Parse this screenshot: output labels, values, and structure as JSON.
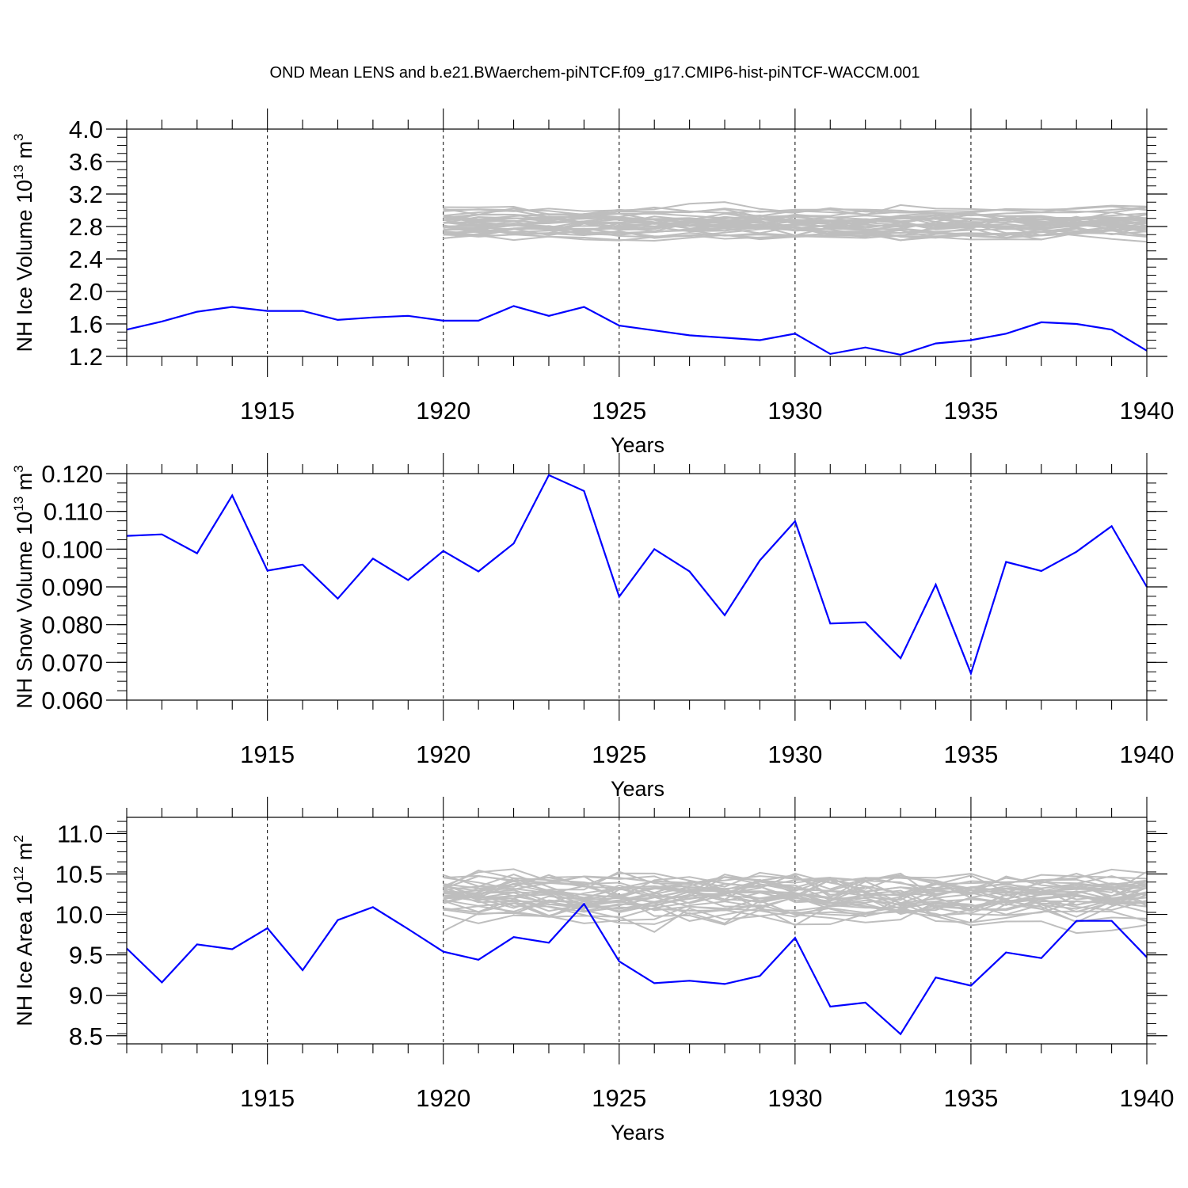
{
  "figure": {
    "title": "OND Mean LENS and b.e21.BWaerchem-piNTCF.f09_g17.CMIP6-hist-piNTCF-WACCM.001",
    "colors": {
      "lens": "#bebebe",
      "run": "#0000ff",
      "axis": "#000000",
      "grid": "#000000"
    }
  },
  "chart_data": [
    {
      "type": "line",
      "ylabel": "NH Ice Volume 10",
      "ylabel_exp": "13",
      "ylabel_unit": " m",
      "ylabel_unit_exp": "3",
      "xlabel": "Years",
      "xlim": [
        1911,
        1940
      ],
      "ylim": [
        1.2,
        4.0
      ],
      "yticks": [
        1.2,
        1.6,
        2.0,
        2.4,
        2.8,
        3.2,
        3.6,
        4.0
      ],
      "ytick_labels": [
        "1.2",
        "1.6",
        "2.0",
        "2.4",
        "2.8",
        "3.2",
        "3.6",
        "4.0"
      ],
      "xticks": [
        1915,
        1920,
        1925,
        1930,
        1935,
        1940
      ],
      "xtick_labels": [
        "1915",
        "1920",
        "1925",
        "1930",
        "1935",
        "1940"
      ],
      "grid_x": [
        1915,
        1920,
        1925,
        1930,
        1935
      ],
      "lens": {
        "name": "LENS members",
        "start": 1920,
        "n_members": 34,
        "center": 2.85,
        "spread": 0.17,
        "noise": 0.09,
        "seed": 11
      },
      "series": [
        {
          "name": "b.e21.BWaerchem-piNTCF.f09_g17.CMIP6-hist-piNTCF-WACCM.001",
          "x": [
            1911,
            1912,
            1913,
            1914,
            1915,
            1916,
            1917,
            1918,
            1919,
            1920,
            1921,
            1922,
            1923,
            1924,
            1925,
            1926,
            1927,
            1928,
            1929,
            1930,
            1931,
            1932,
            1933,
            1934,
            1935,
            1936,
            1937,
            1938,
            1939,
            1940
          ],
          "values": [
            1.53,
            1.63,
            1.75,
            1.81,
            1.76,
            1.76,
            1.65,
            1.68,
            1.7,
            1.64,
            1.64,
            1.82,
            1.7,
            1.81,
            1.58,
            1.52,
            1.46,
            1.43,
            1.4,
            1.48,
            1.23,
            1.31,
            1.22,
            1.36,
            1.4,
            1.48,
            1.62,
            1.6,
            1.53,
            1.27
          ]
        }
      ]
    },
    {
      "type": "line",
      "ylabel": "NH Snow Volume 10",
      "ylabel_exp": "13",
      "ylabel_unit": " m",
      "ylabel_unit_exp": "3",
      "xlabel": "Years",
      "xlim": [
        1911,
        1940
      ],
      "ylim": [
        0.06,
        0.12
      ],
      "yticks": [
        0.06,
        0.07,
        0.08,
        0.09,
        0.1,
        0.11,
        0.12
      ],
      "ytick_labels": [
        "0.060",
        "0.070",
        "0.080",
        "0.090",
        "0.100",
        "0.110",
        "0.120"
      ],
      "xticks": [
        1915,
        1920,
        1925,
        1930,
        1935,
        1940
      ],
      "xtick_labels": [
        "1915",
        "1920",
        "1925",
        "1930",
        "1935",
        "1940"
      ],
      "grid_x": [
        1915,
        1920,
        1925,
        1930,
        1935
      ],
      "series": [
        {
          "name": "b.e21.BWaerchem-piNTCF.f09_g17.CMIP6-hist-piNTCF-WACCM.001",
          "x": [
            1911,
            1912,
            1913,
            1914,
            1915,
            1916,
            1917,
            1918,
            1919,
            1920,
            1921,
            1922,
            1923,
            1924,
            1925,
            1926,
            1927,
            1928,
            1929,
            1930,
            1931,
            1932,
            1933,
            1934,
            1935,
            1936,
            1937,
            1938,
            1939,
            1940
          ],
          "values": [
            0.1035,
            0.1039,
            0.0989,
            0.1142,
            0.0943,
            0.0959,
            0.0869,
            0.0975,
            0.0918,
            0.0995,
            0.0941,
            0.1015,
            0.1196,
            0.1154,
            0.0874,
            0.1,
            0.0941,
            0.0825,
            0.097,
            0.1074,
            0.0803,
            0.0806,
            0.0711,
            0.0906,
            0.0671,
            0.0966,
            0.0942,
            0.0993,
            0.1061,
            0.09
          ]
        }
      ]
    },
    {
      "type": "line",
      "ylabel": "NH Ice Area 10",
      "ylabel_exp": "12",
      "ylabel_unit": " m",
      "ylabel_unit_exp": "2",
      "xlabel": "Years",
      "xlim": [
        1911,
        1940
      ],
      "ylim": [
        8.4,
        11.2
      ],
      "yticks": [
        8.5,
        9.0,
        9.5,
        10.0,
        10.5,
        11.0
      ],
      "ytick_labels": [
        "8.5",
        "9.0",
        "9.5",
        "10.0",
        "10.5",
        "11.0"
      ],
      "xticks": [
        1915,
        1920,
        1925,
        1930,
        1935,
        1940
      ],
      "xtick_labels": [
        "1915",
        "1920",
        "1925",
        "1930",
        "1935",
        "1940"
      ],
      "grid_x": [
        1915,
        1920,
        1925,
        1930,
        1935
      ],
      "lens": {
        "name": "LENS members",
        "start": 1920,
        "n_members": 34,
        "center": 10.2,
        "spread": 0.22,
        "noise": 0.2,
        "seed": 29
      },
      "series": [
        {
          "name": "b.e21.BWaerchem-piNTCF.f09_g17.CMIP6-hist-piNTCF-WACCM.001",
          "x": [
            1911,
            1912,
            1913,
            1914,
            1915,
            1916,
            1917,
            1918,
            1919,
            1920,
            1921,
            1922,
            1923,
            1924,
            1925,
            1926,
            1927,
            1928,
            1929,
            1930,
            1931,
            1932,
            1933,
            1934,
            1935,
            1936,
            1937,
            1938,
            1939,
            1940
          ],
          "values": [
            9.58,
            9.16,
            9.63,
            9.57,
            9.83,
            9.31,
            9.93,
            10.09,
            9.82,
            9.54,
            9.44,
            9.72,
            9.65,
            10.13,
            9.42,
            9.15,
            9.18,
            9.14,
            9.24,
            9.71,
            8.86,
            8.91,
            8.52,
            9.22,
            9.12,
            9.53,
            9.46,
            9.92,
            9.92,
            9.47
          ]
        }
      ]
    }
  ]
}
